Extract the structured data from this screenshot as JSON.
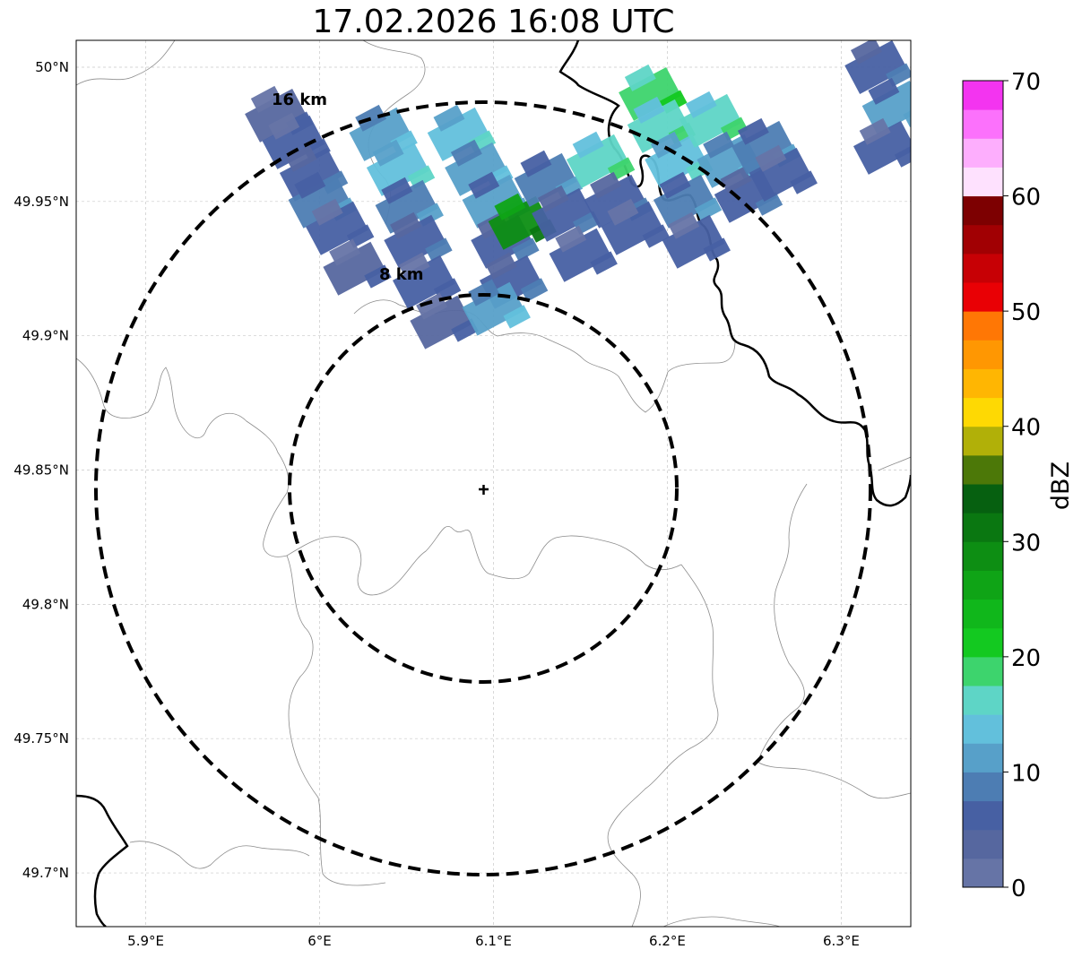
{
  "title": "17.02.2026 16:08 UTC",
  "map": {
    "lon_range": [
      5.86,
      6.34
    ],
    "lat_range": [
      49.68,
      50.01
    ],
    "lon_ticks": [
      {
        "value": 5.9,
        "label": "5.9°E"
      },
      {
        "value": 6.0,
        "label": "6°E"
      },
      {
        "value": 6.1,
        "label": "6.1°E"
      },
      {
        "value": 6.2,
        "label": "6.2°E"
      },
      {
        "value": 6.3,
        "label": "6.3°E"
      }
    ],
    "lat_ticks": [
      {
        "value": 50.0,
        "label": "50°N"
      },
      {
        "value": 49.95,
        "label": "49.95°N"
      },
      {
        "value": 49.9,
        "label": "49.9°N"
      },
      {
        "value": 49.85,
        "label": "49.85°N"
      },
      {
        "value": 49.8,
        "label": "49.8°N"
      },
      {
        "value": 49.75,
        "label": "49.75°N"
      },
      {
        "value": 49.7,
        "label": "49.7°N"
      }
    ],
    "grid": true,
    "radar_site": {
      "lon": 6.0955,
      "lat": 49.8435
    },
    "range_rings": [
      {
        "radius_km": 8,
        "label": "8 km"
      },
      {
        "radius_km": 16,
        "label": "16 km"
      }
    ],
    "country_border_color": "#000000",
    "admin_border_color": "#8c8c8c"
  },
  "colorbar": {
    "label": "dBZ",
    "min": 0,
    "max": 70,
    "step": 2.5,
    "tick_labels": [
      "0",
      "10",
      "20",
      "30",
      "40",
      "50",
      "60",
      "70"
    ],
    "colors": [
      "#6674a6",
      "#56679f",
      "#4760a3",
      "#4d7db3",
      "#57a0c9",
      "#62c0dc",
      "#5ed5c6",
      "#3dd46d",
      "#13c920",
      "#10b71b",
      "#0fa416",
      "#0d8e13",
      "#0a7711",
      "#066010",
      "#4c7808",
      "#b1b008",
      "#fed903",
      "#ffb602",
      "#ff9702",
      "#ff7705",
      "#e90005",
      "#c70005",
      "#a10003",
      "#7d0001",
      "#fee1fe",
      "#fdaefd",
      "#fc71fc",
      "#f334f0"
    ]
  },
  "reflectivity_cells": [
    {
      "lon": 5.975,
      "lat": 49.982,
      "dbz": 3
    },
    {
      "lon": 5.985,
      "lat": 49.972,
      "dbz": 5
    },
    {
      "lon": 5.995,
      "lat": 49.96,
      "dbz": 6
    },
    {
      "lon": 6.0,
      "lat": 49.95,
      "dbz": 8
    },
    {
      "lon": 6.01,
      "lat": 49.94,
      "dbz": 5
    },
    {
      "lon": 6.02,
      "lat": 49.925,
      "dbz": 4
    },
    {
      "lon": 6.035,
      "lat": 49.975,
      "dbz": 12
    },
    {
      "lon": 6.045,
      "lat": 49.962,
      "dbz": 14
    },
    {
      "lon": 6.05,
      "lat": 49.948,
      "dbz": 9
    },
    {
      "lon": 6.055,
      "lat": 49.935,
      "dbz": 7
    },
    {
      "lon": 6.06,
      "lat": 49.92,
      "dbz": 5
    },
    {
      "lon": 6.07,
      "lat": 49.905,
      "dbz": 4
    },
    {
      "lon": 6.08,
      "lat": 49.975,
      "dbz": 13
    },
    {
      "lon": 6.09,
      "lat": 49.962,
      "dbz": 11
    },
    {
      "lon": 6.1,
      "lat": 49.95,
      "dbz": 10
    },
    {
      "lon": 6.105,
      "lat": 49.935,
      "dbz": 6
    },
    {
      "lon": 6.115,
      "lat": 49.942,
      "dbz": 29
    },
    {
      "lon": 6.11,
      "lat": 49.92,
      "dbz": 7
    },
    {
      "lon": 6.1,
      "lat": 49.91,
      "dbz": 12
    },
    {
      "lon": 6.13,
      "lat": 49.958,
      "dbz": 9
    },
    {
      "lon": 6.14,
      "lat": 49.945,
      "dbz": 6
    },
    {
      "lon": 6.15,
      "lat": 49.93,
      "dbz": 5
    },
    {
      "lon": 6.16,
      "lat": 49.965,
      "dbz": 16
    },
    {
      "lon": 6.17,
      "lat": 49.95,
      "dbz": 7
    },
    {
      "lon": 6.18,
      "lat": 49.94,
      "dbz": 5
    },
    {
      "lon": 6.19,
      "lat": 49.99,
      "dbz": 19
    },
    {
      "lon": 6.195,
      "lat": 49.978,
      "dbz": 17
    },
    {
      "lon": 6.205,
      "lat": 49.965,
      "dbz": 13
    },
    {
      "lon": 6.21,
      "lat": 49.95,
      "dbz": 8
    },
    {
      "lon": 6.215,
      "lat": 49.935,
      "dbz": 5
    },
    {
      "lon": 6.225,
      "lat": 49.98,
      "dbz": 16
    },
    {
      "lon": 6.235,
      "lat": 49.965,
      "dbz": 11
    },
    {
      "lon": 6.245,
      "lat": 49.952,
      "dbz": 6
    },
    {
      "lon": 6.255,
      "lat": 49.97,
      "dbz": 9
    },
    {
      "lon": 6.265,
      "lat": 49.96,
      "dbz": 5
    },
    {
      "lon": 6.32,
      "lat": 50.0,
      "dbz": 6
    },
    {
      "lon": 6.33,
      "lat": 49.985,
      "dbz": 10
    },
    {
      "lon": 6.325,
      "lat": 49.97,
      "dbz": 5
    }
  ]
}
